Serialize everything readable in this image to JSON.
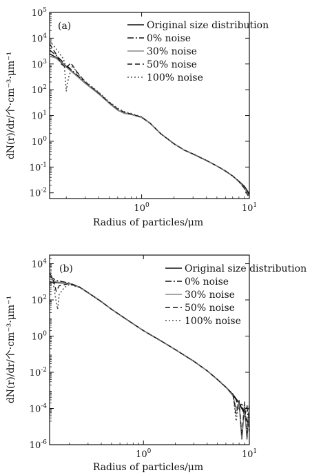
{
  "chart_data": [
    {
      "type": "line",
      "panel_label": "(a)",
      "xlabel": "Radius of particles/μm",
      "ylabel": "dN(r)/dr/个·cm⁻³·μm⁻¹",
      "xscale": "log",
      "yscale": "log",
      "xlim": [
        0.14,
        10
      ],
      "ylim": [
        0.006,
        100000
      ],
      "x_ticks": [
        {
          "base": "10",
          "exp": "0"
        },
        {
          "base": "10",
          "exp": "1"
        }
      ],
      "y_ticks": [
        {
          "base": "10",
          "exp": "5"
        },
        {
          "base": "10",
          "exp": "4"
        },
        {
          "base": "10",
          "exp": "3"
        },
        {
          "base": "10",
          "exp": "2"
        },
        {
          "base": "10",
          "exp": "1"
        },
        {
          "base": "10",
          "exp": "0"
        },
        {
          "base": "10",
          "exp": "-1"
        },
        {
          "base": "10",
          "exp": "-2"
        }
      ],
      "legend_position": "top-right",
      "series": [
        {
          "name": "Original size distribution",
          "style": "solid",
          "color": "#111111",
          "x": [
            0.14,
            0.16,
            0.2,
            0.25,
            0.3,
            0.4,
            0.5,
            0.6,
            0.7,
            0.8,
            1.0,
            1.2,
            1.5,
            2.0,
            2.5,
            3.0,
            4.0,
            5.0,
            6.0,
            7.0,
            8.0,
            9.0,
            10.0
          ],
          "y": [
            2500,
            1800,
            800,
            350,
            180,
            70,
            30,
            16,
            12,
            11,
            8.5,
            5,
            2,
            0.8,
            0.45,
            0.32,
            0.18,
            0.11,
            0.07,
            0.045,
            0.028,
            0.018,
            0.009
          ]
        },
        {
          "name": "0% noise",
          "style": "dashdot",
          "color": "#111111",
          "x": [
            0.14,
            0.16,
            0.2,
            0.25,
            0.3,
            0.4,
            0.5,
            0.6,
            0.7,
            0.8,
            1.0,
            1.2,
            1.5,
            2.0,
            2.5,
            3.0,
            4.0,
            5.0,
            6.0,
            7.0,
            8.0,
            9.0,
            10.0
          ],
          "y": [
            3500,
            2200,
            900,
            380,
            190,
            72,
            31,
            17,
            12.5,
            11,
            8.5,
            5,
            2,
            0.8,
            0.45,
            0.32,
            0.18,
            0.11,
            0.07,
            0.045,
            0.028,
            0.017,
            0.008
          ]
        },
        {
          "name": "30% noise",
          "style": "solid",
          "color": "#888888",
          "x": [
            0.14,
            0.16,
            0.2,
            0.25,
            0.3,
            0.4,
            0.5,
            0.6,
            0.7,
            0.8,
            1.0,
            1.2,
            1.5,
            2.0,
            2.5,
            3.0,
            4.0,
            5.0,
            6.0,
            7.0,
            8.0,
            9.0,
            10.0
          ],
          "y": [
            2000,
            1700,
            750,
            340,
            175,
            68,
            30,
            16,
            12,
            11,
            8.4,
            5,
            2,
            0.8,
            0.45,
            0.32,
            0.18,
            0.11,
            0.07,
            0.045,
            0.027,
            0.016,
            0.007
          ]
        },
        {
          "name": "50% noise",
          "style": "dashed",
          "color": "#111111",
          "x": [
            0.14,
            0.16,
            0.18,
            0.2,
            0.22,
            0.25,
            0.3,
            0.4,
            0.5,
            0.6,
            0.7,
            0.8,
            1.0,
            1.2,
            1.5,
            2.0,
            2.5,
            3.0,
            4.0,
            5.0,
            6.0,
            7.0,
            8.0,
            9.0,
            10.0
          ],
          "y": [
            6000,
            2500,
            1000,
            700,
            1100,
            500,
            200,
            75,
            32,
            18,
            13,
            11.5,
            8.6,
            5,
            2,
            0.8,
            0.45,
            0.32,
            0.18,
            0.11,
            0.07,
            0.045,
            0.028,
            0.015,
            0.006
          ]
        },
        {
          "name": "100% noise",
          "style": "dotted",
          "color": "#555555",
          "x": [
            0.14,
            0.16,
            0.19,
            0.2,
            0.21,
            0.23,
            0.25,
            0.3,
            0.4,
            0.5,
            0.6,
            0.7,
            0.8,
            1.0,
            1.2,
            1.5,
            2.0,
            2.5,
            3.0,
            4.0,
            5.0,
            6.0,
            7.0,
            8.0,
            9.0,
            10.0
          ],
          "y": [
            8000,
            4000,
            1500,
            90,
            300,
            900,
            450,
            210,
            80,
            34,
            19,
            14,
            12,
            9,
            5,
            2,
            0.8,
            0.45,
            0.32,
            0.18,
            0.11,
            0.07,
            0.045,
            0.028,
            0.014,
            0.007
          ]
        }
      ]
    },
    {
      "type": "line",
      "panel_label": "(b)",
      "xlabel": "Radius of particles/μm",
      "ylabel": "dN(r)/dr/个·cm⁻³·μm⁻¹",
      "xscale": "log",
      "yscale": "log",
      "xlim": [
        0.13,
        10
      ],
      "ylim": [
        1e-06,
        30000
      ],
      "x_ticks": [
        {
          "base": "10",
          "exp": "0"
        },
        {
          "base": "10",
          "exp": "1"
        }
      ],
      "y_ticks": [
        {
          "base": "10",
          "exp": "4"
        },
        {
          "base": "10",
          "exp": "2"
        },
        {
          "base": "10",
          "exp": "0"
        },
        {
          "base": "10",
          "exp": "-2"
        },
        {
          "base": "10",
          "exp": "-4"
        },
        {
          "base": "10",
          "exp": "-6"
        }
      ],
      "legend_position": "top-right",
      "series": [
        {
          "name": "Original size distribution",
          "style": "solid",
          "color": "#111111",
          "x": [
            0.13,
            0.15,
            0.2,
            0.25,
            0.3,
            0.4,
            0.5,
            0.7,
            1.0,
            1.5,
            2.0,
            3.0,
            4.0,
            5.0,
            6.0,
            7.0,
            8.0,
            9.0,
            10.0
          ],
          "y": [
            1000,
            900,
            800,
            500,
            250,
            80,
            30,
            8,
            2,
            0.5,
            0.18,
            0.04,
            0.012,
            0.004,
            0.0015,
            0.0006,
            0.0002,
            5e-05,
            1e-05
          ]
        },
        {
          "name": "0% noise",
          "style": "dashdot",
          "color": "#111111",
          "x": [
            0.13,
            0.15,
            0.2,
            0.25,
            0.3,
            0.4,
            0.5,
            0.7,
            1.0,
            1.5,
            2.0,
            3.0,
            4.0,
            5.0,
            6.0,
            7.0,
            7.5,
            8.0,
            8.5,
            9.0,
            9.5,
            10.0
          ],
          "y": [
            2000,
            1200,
            850,
            520,
            255,
            82,
            30,
            8,
            2,
            0.5,
            0.18,
            0.04,
            0.012,
            0.004,
            0.0015,
            0.0006,
            0.0003,
            0.0001,
            0.0002,
            3e-05,
            0.00015,
            5e-06
          ]
        },
        {
          "name": "30% noise",
          "style": "solid",
          "color": "#888888",
          "x": [
            0.13,
            0.15,
            0.2,
            0.25,
            0.3,
            0.4,
            0.5,
            0.7,
            1.0,
            1.5,
            2.0,
            3.0,
            4.0,
            5.0,
            6.0,
            7.0,
            7.5,
            8.0,
            8.5,
            9.0,
            9.5,
            10.0
          ],
          "y": [
            1500,
            1000,
            780,
            500,
            250,
            80,
            30,
            8,
            2,
            0.5,
            0.18,
            0.04,
            0.012,
            0.004,
            0.0015,
            0.0005,
            0.0001,
            0.0002,
            2e-06,
            0.00012,
            2e-06,
            0.00015
          ]
        },
        {
          "name": "50% noise",
          "style": "dashed",
          "color": "#111111",
          "x": [
            0.13,
            0.14,
            0.15,
            0.16,
            0.18,
            0.2,
            0.25,
            0.3,
            0.4,
            0.5,
            0.7,
            1.0,
            1.5,
            2.0,
            3.0,
            4.0,
            5.0,
            6.0,
            7.0,
            7.5,
            8.0,
            8.5,
            9.0,
            9.5,
            10.0
          ],
          "y": [
            3000,
            1500,
            300,
            600,
            700,
            800,
            500,
            250,
            80,
            30,
            8,
            2,
            0.5,
            0.18,
            0.04,
            0.012,
            0.004,
            0.0015,
            0.0006,
            5e-05,
            0.00025,
            3e-06,
            0.0002,
            3e-06,
            0.0002
          ]
        },
        {
          "name": "100% noise",
          "style": "dotted",
          "color": "#555555",
          "x": [
            0.13,
            0.14,
            0.15,
            0.155,
            0.16,
            0.18,
            0.2,
            0.25,
            0.3,
            0.4,
            0.5,
            0.7,
            1.0,
            1.5,
            2.0,
            3.0,
            4.0,
            5.0,
            6.0,
            7.0,
            7.5,
            8.0,
            8.5,
            9.0,
            9.5,
            10.0
          ],
          "y": [
            5000,
            1000,
            80,
            30,
            200,
            500,
            700,
            480,
            250,
            80,
            30,
            8,
            2,
            0.5,
            0.18,
            0.04,
            0.012,
            0.004,
            0.0015,
            0.0006,
            2e-05,
            0.0003,
            2e-06,
            0.00025,
            2e-06,
            0.0003
          ]
        }
      ]
    }
  ]
}
